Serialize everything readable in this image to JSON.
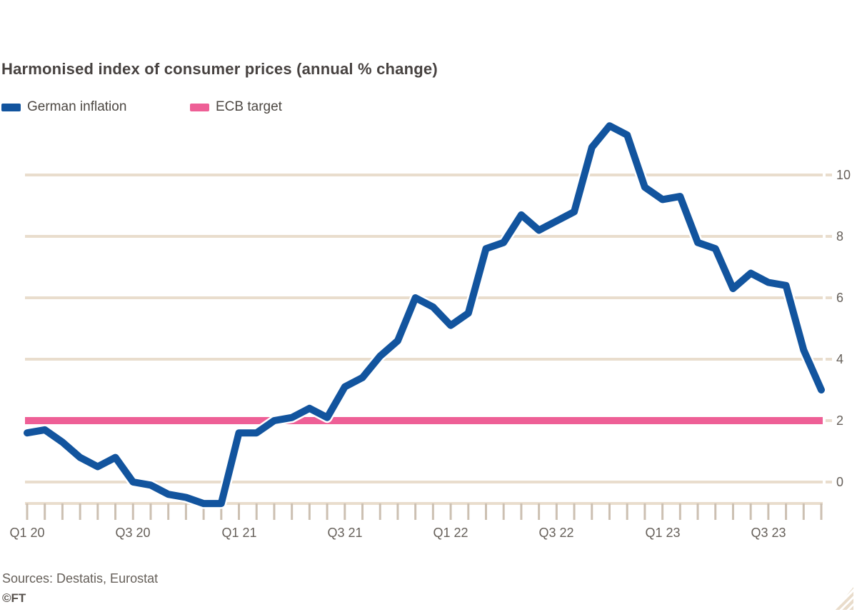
{
  "title": "Harmonised index of consumer prices (annual % change)",
  "chart_data": {
    "type": "line",
    "title": "Harmonised index of consumer prices (annual % change)",
    "x_unit": "month",
    "months": [
      "2020-01",
      "2020-02",
      "2020-03",
      "2020-04",
      "2020-05",
      "2020-06",
      "2020-07",
      "2020-08",
      "2020-09",
      "2020-10",
      "2020-11",
      "2020-12",
      "2021-01",
      "2021-02",
      "2021-03",
      "2021-04",
      "2021-05",
      "2021-06",
      "2021-07",
      "2021-08",
      "2021-09",
      "2021-10",
      "2021-11",
      "2021-12",
      "2022-01",
      "2022-02",
      "2022-03",
      "2022-04",
      "2022-05",
      "2022-06",
      "2022-07",
      "2022-08",
      "2022-09",
      "2022-10",
      "2022-11",
      "2022-12",
      "2023-01",
      "2023-02",
      "2023-03",
      "2023-04",
      "2023-05",
      "2023-06",
      "2023-07",
      "2023-08",
      "2023-09",
      "2023-10"
    ],
    "series": [
      {
        "name": "German inflation",
        "color": "#12549E",
        "values": [
          1.6,
          1.7,
          1.3,
          0.8,
          0.5,
          0.8,
          0.0,
          -0.1,
          -0.4,
          -0.5,
          -0.7,
          -0.7,
          1.6,
          1.6,
          2.0,
          2.1,
          2.4,
          2.1,
          3.1,
          3.4,
          4.1,
          4.6,
          6.0,
          5.7,
          5.1,
          5.5,
          7.6,
          7.8,
          8.7,
          8.2,
          8.5,
          8.8,
          10.9,
          11.6,
          11.3,
          9.6,
          9.2,
          9.3,
          7.8,
          7.6,
          6.3,
          6.8,
          6.5,
          6.4,
          4.3,
          3.0
        ]
      },
      {
        "name": "ECB target",
        "color": "#EE5F96",
        "style": "constant-line",
        "value": 2
      }
    ],
    "y_ticks": [
      10,
      8,
      6,
      4,
      2,
      0
    ],
    "y_gridlines": [
      0,
      4,
      6,
      8,
      10
    ],
    "x_tick_labels": [
      {
        "label": "Q1 20",
        "month": 0
      },
      {
        "label": "Q3 20",
        "month": 6
      },
      {
        "label": "Q1 21",
        "month": 12
      },
      {
        "label": "Q3 21",
        "month": 18
      },
      {
        "label": "Q1 22",
        "month": 24
      },
      {
        "label": "Q3 22",
        "month": 30
      },
      {
        "label": "Q1 23",
        "month": 36
      },
      {
        "label": "Q3 23",
        "month": 42
      }
    ],
    "ylim": [
      -1.5,
      12.5
    ],
    "grid": "horizontal",
    "legend_position": "top-left"
  },
  "footer": {
    "sources": "Sources: Destatis, Eurostat",
    "ft_mark": "©FT"
  },
  "colors": {
    "blue": "#12549E",
    "pink": "#EE5F96",
    "gridline": "#E9DDCD",
    "axis_tick": "#CCC0B2",
    "title_text": "#474240",
    "legend_text": "#4D4843",
    "axis_text": "#66605A",
    "background": "#FFFFFF"
  }
}
